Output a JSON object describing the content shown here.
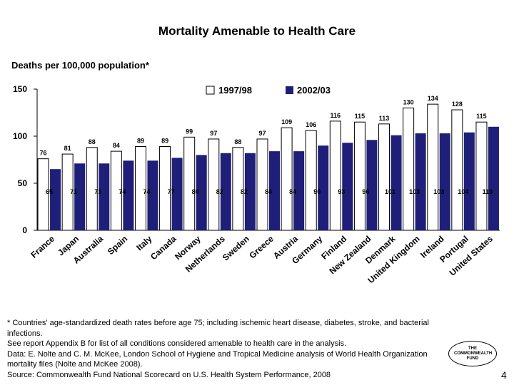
{
  "slide": {
    "title": "Mortality Amenable to Health Care",
    "subtitle": "Deaths per 100,000 population*",
    "footnotes": [
      "* Countries' age-standardized death rates before age 75; including ischemic heart disease, diabetes, stroke, and bacterial infections.",
      "See report Appendix B for list of all conditions considered amenable to health care in the analysis.",
      "Data: E. Nolte and C. M. McKee, London School of Hygiene and Tropical Medicine analysis of World Health Organization mortality files (Nolte and McKee 2008).",
      "Source: Commonwealth Fund National Scorecard on U.S. Health System Performance, 2008"
    ],
    "logo_text": "THE COMMONWEALTH FUND",
    "page_number": "4"
  },
  "colors": {
    "series_1997_98": "#ffffff",
    "series_2002_03": "#1f1f7a"
  },
  "chart_data": {
    "type": "bar",
    "title": "Mortality Amenable to Health Care",
    "ylabel": "Deaths per 100,000 population*",
    "ylim": [
      0,
      150
    ],
    "yticks": [
      0,
      50,
      100,
      150
    ],
    "grid": false,
    "legend_position": "top",
    "categories": [
      "France",
      "Japan",
      "Australia",
      "Spain",
      "Italy",
      "Canada",
      "Norway",
      "Netherlands",
      "Sweden",
      "Greece",
      "Austria",
      "Germany",
      "Finland",
      "New Zealand",
      "Denmark",
      "United Kingdom",
      "Ireland",
      "Portugal",
      "United States"
    ],
    "series": [
      {
        "name": "1997/98",
        "values": [
          76,
          81,
          88,
          84,
          89,
          89,
          99,
          97,
          88,
          97,
          109,
          106,
          116,
          115,
          113,
          130,
          134,
          128,
          115
        ]
      },
      {
        "name": "2002/03",
        "values": [
          65,
          71,
          71,
          74,
          74,
          77,
          80,
          82,
          82,
          84,
          84,
          90,
          93,
          96,
          101,
          103,
          103,
          104,
          110
        ]
      }
    ]
  }
}
